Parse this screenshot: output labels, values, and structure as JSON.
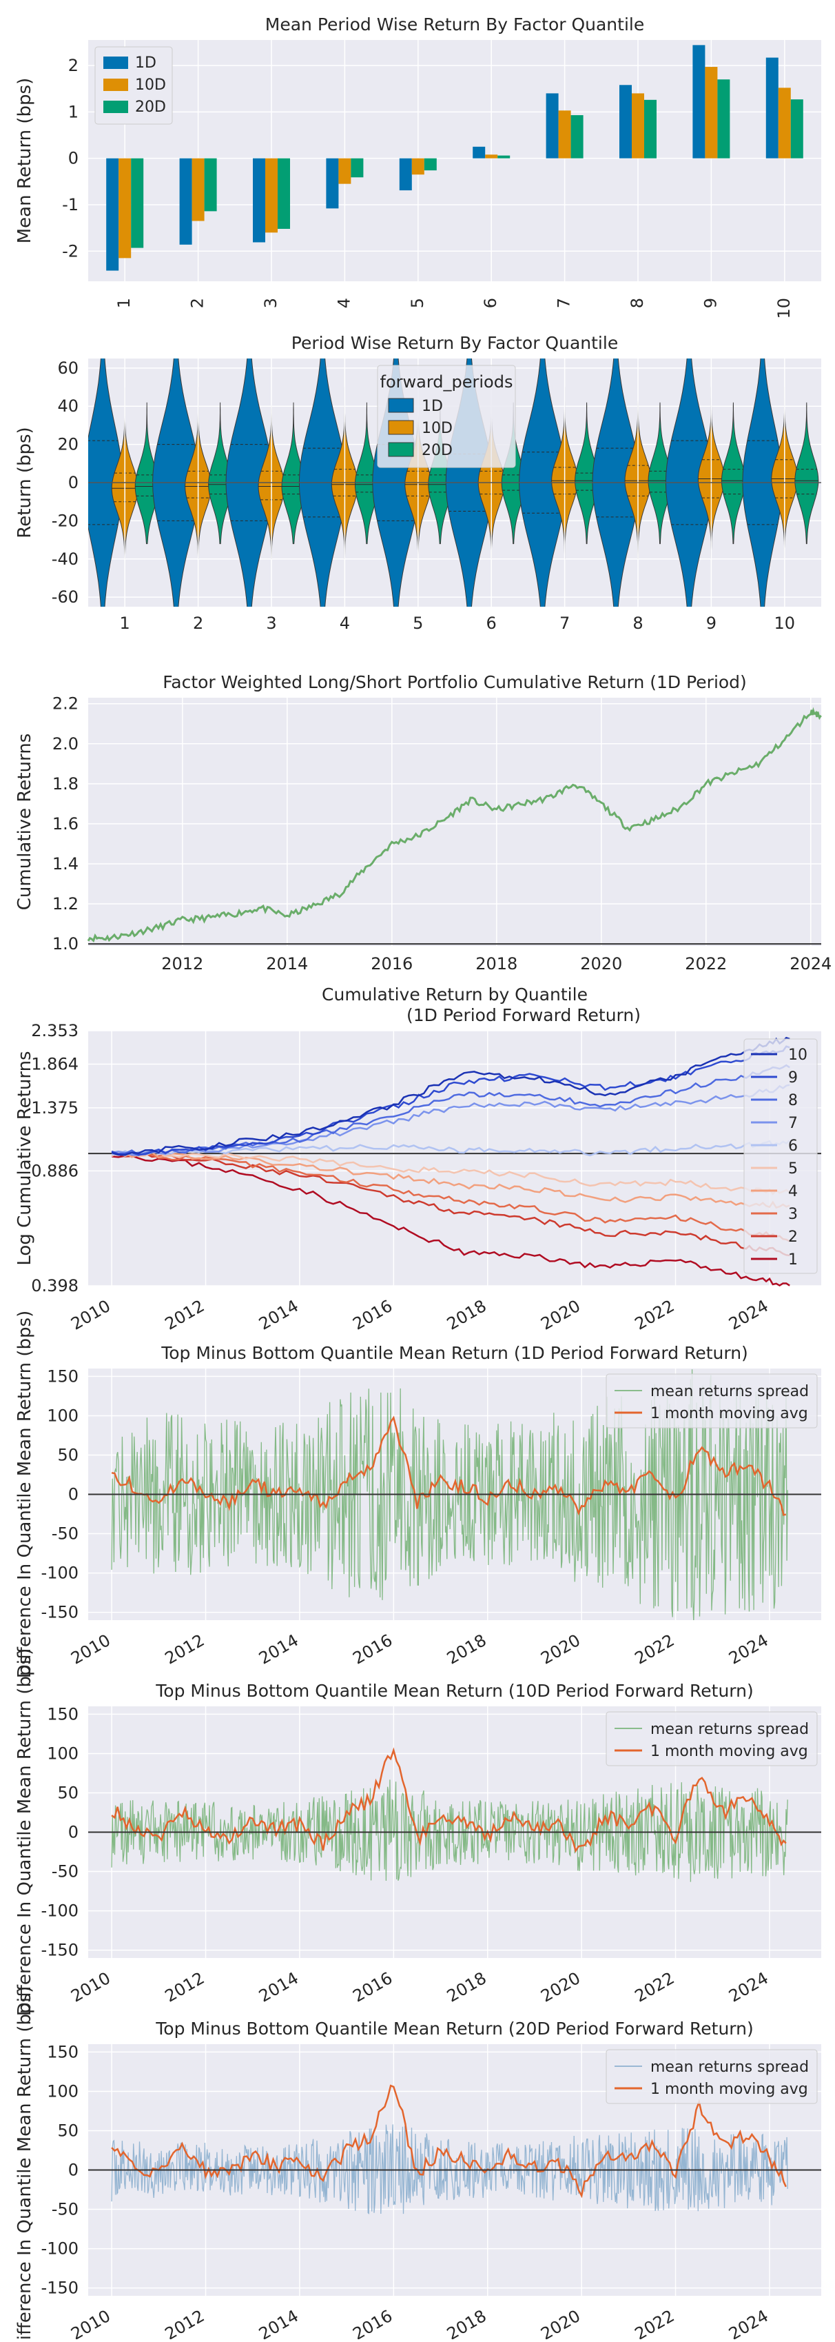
{
  "chart_data": [
    {
      "type": "bar",
      "title": "Mean Period Wise Return By Factor Quantile",
      "xlabel": "",
      "ylabel": "Mean Return (bps)",
      "ylim": [
        -2.65,
        2.55
      ],
      "yticks": [
        -2,
        -1,
        0,
        1,
        2
      ],
      "categories": [
        "1",
        "2",
        "3",
        "4",
        "5",
        "6",
        "7",
        "8",
        "9",
        "10"
      ],
      "legend_position": "top-left",
      "series": [
        {
          "name": "1D",
          "color": "#0173b2",
          "values": [
            -2.42,
            -1.86,
            -1.81,
            -1.08,
            -0.69,
            0.25,
            1.4,
            1.58,
            2.44,
            2.17
          ]
        },
        {
          "name": "10D",
          "color": "#de8f05",
          "values": [
            -2.15,
            -1.35,
            -1.6,
            -0.55,
            -0.35,
            0.08,
            1.03,
            1.4,
            1.97,
            1.52
          ]
        },
        {
          "name": "20D",
          "color": "#029e73",
          "values": [
            -1.93,
            -1.14,
            -1.52,
            -0.41,
            -0.26,
            0.06,
            0.93,
            1.26,
            1.7,
            1.27
          ]
        }
      ]
    },
    {
      "type": "violin",
      "title": "Period Wise Return By Factor Quantile",
      "xlabel": "",
      "ylabel": "Return (bps)",
      "ylim": [
        -65,
        65
      ],
      "yticks": [
        -60,
        -40,
        -20,
        0,
        20,
        40,
        60
      ],
      "categories": [
        "1",
        "2",
        "3",
        "4",
        "5",
        "6",
        "7",
        "8",
        "9",
        "10"
      ],
      "legend_title": "forward_periods",
      "legend_position": "top-center",
      "series": [
        {
          "name": "1D",
          "color": "#0173b2",
          "median": [
            0,
            0,
            0,
            0,
            0,
            0,
            0,
            0,
            0,
            0
          ],
          "q1": [
            -22,
            -20,
            -20,
            -18,
            -20,
            -15,
            -16,
            -18,
            -22,
            -22
          ],
          "q3": [
            22,
            20,
            20,
            18,
            20,
            15,
            16,
            18,
            22,
            22
          ]
        },
        {
          "name": "10D",
          "color": "#de8f05",
          "median": [
            -3,
            -2,
            -2,
            -1,
            -1,
            0,
            1,
            1,
            2,
            2
          ],
          "q1": [
            -10,
            -8,
            -9,
            -7,
            -7,
            -6,
            -6,
            -7,
            -8,
            -8
          ],
          "q3": [
            5,
            6,
            6,
            7,
            6,
            6,
            8,
            9,
            12,
            12
          ]
        },
        {
          "name": "20D",
          "color": "#029e73",
          "median": [
            -2,
            -1,
            -2,
            -1,
            -1,
            0,
            1,
            1,
            1,
            1
          ],
          "q1": [
            -7,
            -6,
            -6,
            -5,
            -5,
            -4,
            -4,
            -5,
            -6,
            -6
          ],
          "q3": [
            4,
            4,
            4,
            4,
            4,
            4,
            5,
            6,
            7,
            7
          ]
        }
      ]
    },
    {
      "type": "line",
      "title": "Factor Weighted Long/Short Portfolio Cumulative Return (1D Period)",
      "xlabel": "",
      "ylabel": "Cumulative Returns",
      "xlim": [
        2010.2,
        2024.2
      ],
      "ylim": [
        0.99,
        2.23
      ],
      "xticks": [
        "2012",
        "2014",
        "2016",
        "2018",
        "2020",
        "2022",
        "2024"
      ],
      "yticks": [
        "1.0",
        "1.2",
        "1.4",
        "1.6",
        "1.8",
        "2.0",
        "2.2"
      ],
      "series": [
        {
          "name": "",
          "color": "#6aad6a",
          "x": [
            2010.2,
            2010.6,
            2011.0,
            2011.5,
            2012.0,
            2012.5,
            2013.0,
            2013.5,
            2014.0,
            2014.5,
            2015.0,
            2015.5,
            2016.0,
            2016.5,
            2017.0,
            2017.5,
            2018.0,
            2018.5,
            2019.0,
            2019.5,
            2020.0,
            2020.5,
            2021.0,
            2021.5,
            2022.0,
            2022.5,
            2023.0,
            2023.5,
            2024.0,
            2024.2
          ],
          "y": [
            1.03,
            1.03,
            1.05,
            1.08,
            1.12,
            1.13,
            1.15,
            1.18,
            1.14,
            1.19,
            1.25,
            1.38,
            1.5,
            1.54,
            1.62,
            1.72,
            1.67,
            1.7,
            1.73,
            1.8,
            1.7,
            1.58,
            1.62,
            1.68,
            1.8,
            1.85,
            1.9,
            2.02,
            2.16,
            2.14
          ]
        }
      ]
    },
    {
      "type": "line",
      "title": "Cumulative Return by Quantile\n(1D Period Forward Return)",
      "xlabel": "",
      "ylabel": "Log Cumulative Returns",
      "xlim": [
        2009.5,
        2025.1
      ],
      "ylim": [
        0.398,
        2.353
      ],
      "yscale": "log",
      "xticks": [
        "2010",
        "2012",
        "2014",
        "2016",
        "2018",
        "2020",
        "2022",
        "2024"
      ],
      "yticks": [
        "0.398",
        "0.886",
        "1.375",
        "1.864",
        "2.353"
      ],
      "legend_position": "right",
      "series": [
        {
          "name": "10",
          "color": "#1a32b4",
          "x": [
            2010,
            2012,
            2014,
            2016,
            2017.5,
            2019,
            2020.5,
            2022,
            2023.5,
            2024.5
          ],
          "y": [
            1.0,
            1.05,
            1.15,
            1.4,
            1.75,
            1.7,
            1.5,
            1.72,
            2.05,
            2.25
          ]
        },
        {
          "name": "9",
          "color": "#2e4ad0",
          "x": [
            2010,
            2012,
            2014,
            2016,
            2017.5,
            2019,
            2020.5,
            2022,
            2023.5,
            2024.5
          ],
          "y": [
            1.0,
            1.04,
            1.12,
            1.38,
            1.65,
            1.72,
            1.58,
            1.7,
            1.95,
            2.1
          ]
        },
        {
          "name": "8",
          "color": "#4e6ae0",
          "x": [
            2010,
            2012,
            2014,
            2016,
            2017.5,
            2019,
            2020.5,
            2022,
            2023.5,
            2024.5
          ],
          "y": [
            1.0,
            1.03,
            1.1,
            1.3,
            1.52,
            1.5,
            1.4,
            1.55,
            1.72,
            1.85
          ]
        },
        {
          "name": "7",
          "color": "#7b93ec",
          "x": [
            2010,
            2012,
            2014,
            2016,
            2017.5,
            2019,
            2020.5,
            2022,
            2023.5,
            2024.5
          ],
          "y": [
            1.0,
            1.02,
            1.08,
            1.25,
            1.4,
            1.42,
            1.35,
            1.42,
            1.5,
            1.6
          ]
        },
        {
          "name": "6",
          "color": "#b0c2f2",
          "x": [
            2010,
            2012,
            2014,
            2016,
            2017.5,
            2019,
            2020.5,
            2022,
            2023.5,
            2024.5
          ],
          "y": [
            1.0,
            1.01,
            1.03,
            1.05,
            1.02,
            1.03,
            1.0,
            1.04,
            1.06,
            1.08
          ]
        },
        {
          "name": "5",
          "color": "#f4c4b0",
          "x": [
            2010,
            2012,
            2014,
            2016,
            2017.5,
            2019,
            2020.5,
            2022,
            2023.5,
            2024.5
          ],
          "y": [
            1.0,
            0.99,
            0.96,
            0.9,
            0.88,
            0.86,
            0.8,
            0.82,
            0.78,
            0.76
          ]
        },
        {
          "name": "4",
          "color": "#f2a07e",
          "x": [
            2010,
            2012,
            2014,
            2016,
            2017.5,
            2019,
            2020.5,
            2022,
            2023.5,
            2024.5
          ],
          "y": [
            1.0,
            0.98,
            0.92,
            0.85,
            0.8,
            0.78,
            0.72,
            0.74,
            0.7,
            0.7
          ]
        },
        {
          "name": "3",
          "color": "#e36a4a",
          "x": [
            2010,
            2012,
            2014,
            2016,
            2017.5,
            2019,
            2020.5,
            2022,
            2023.5,
            2024.5
          ],
          "y": [
            1.0,
            0.96,
            0.88,
            0.78,
            0.72,
            0.68,
            0.62,
            0.64,
            0.58,
            0.55
          ]
        },
        {
          "name": "2",
          "color": "#cd3a2e",
          "x": [
            2010,
            2012,
            2014,
            2016,
            2017.5,
            2019,
            2020.5,
            2022,
            2023.5,
            2024.5
          ],
          "y": [
            1.0,
            0.95,
            0.86,
            0.74,
            0.66,
            0.63,
            0.57,
            0.58,
            0.52,
            0.5
          ]
        },
        {
          "name": "1",
          "color": "#b00c22",
          "x": [
            2010,
            2012,
            2014,
            2016,
            2017.5,
            2019,
            2020.5,
            2022,
            2023.5,
            2024.5
          ],
          "y": [
            1.0,
            0.92,
            0.78,
            0.6,
            0.5,
            0.49,
            0.45,
            0.48,
            0.42,
            0.4
          ]
        }
      ]
    },
    {
      "type": "line",
      "title": "Top Minus Bottom Quantile Mean Return (1D Period Forward Return)",
      "xlabel": "",
      "ylabel": "Difference In Quantile Mean Return (bps)",
      "xlim": [
        2009.5,
        2025.1
      ],
      "ylim": [
        -160,
        160
      ],
      "xticks": [
        "2010",
        "2012",
        "2014",
        "2016",
        "2018",
        "2020",
        "2022",
        "2024"
      ],
      "yticks": [
        -150,
        -100,
        -50,
        0,
        50,
        100,
        150
      ],
      "legend_position": "top-right",
      "series": [
        {
          "name": "mean returns spread",
          "color": "#6aad6a",
          "band": true,
          "x": [
            2010,
            2011,
            2012,
            2013,
            2014,
            2015,
            2016,
            2017,
            2018,
            2019,
            2020,
            2021,
            2022,
            2023,
            2024.4
          ],
          "y": [
            80,
            90,
            85,
            75,
            80,
            110,
            120,
            80,
            75,
            80,
            100,
            110,
            140,
            130,
            120
          ]
        },
        {
          "name": "1 month moving avg",
          "color": "#e3652d",
          "x": [
            2010,
            2010.5,
            2011,
            2011.5,
            2012,
            2012.5,
            2013,
            2013.5,
            2014,
            2014.5,
            2015,
            2015.5,
            2016,
            2016.5,
            2017,
            2017.5,
            2018,
            2018.5,
            2019,
            2019.5,
            2020,
            2020.5,
            2021,
            2021.5,
            2022,
            2022.5,
            2023,
            2023.5,
            2024,
            2024.4
          ],
          "y": [
            25,
            10,
            -5,
            20,
            5,
            -10,
            15,
            0,
            10,
            -15,
            20,
            35,
            95,
            -10,
            20,
            10,
            -5,
            15,
            0,
            10,
            -20,
            15,
            5,
            30,
            -10,
            60,
            25,
            40,
            10,
            -30
          ]
        }
      ]
    },
    {
      "type": "line",
      "title": "Top Minus Bottom Quantile Mean Return (10D Period Forward Return)",
      "xlabel": "",
      "ylabel": "Difference In Quantile Mean Return (bps)",
      "xlim": [
        2009.5,
        2025.1
      ],
      "ylim": [
        -160,
        160
      ],
      "xticks": [
        "2010",
        "2012",
        "2014",
        "2016",
        "2018",
        "2020",
        "2022",
        "2024"
      ],
      "yticks": [
        -150,
        -100,
        -50,
        0,
        50,
        100,
        150
      ],
      "legend_position": "top-right",
      "series": [
        {
          "name": "mean returns spread",
          "color": "#6aad6a",
          "band": true,
          "x": [
            2010,
            2011,
            2012,
            2013,
            2014,
            2015,
            2016,
            2017,
            2018,
            2019,
            2020,
            2021,
            2022,
            2023,
            2024.4
          ],
          "y": [
            45,
            40,
            40,
            35,
            40,
            55,
            70,
            45,
            40,
            40,
            50,
            55,
            65,
            60,
            55
          ]
        },
        {
          "name": "1 month moving avg",
          "color": "#e3652d",
          "x": [
            2010,
            2010.5,
            2011,
            2011.5,
            2012,
            2012.5,
            2013,
            2013.5,
            2014,
            2014.5,
            2015,
            2015.5,
            2016,
            2016.5,
            2017,
            2017.5,
            2018,
            2018.5,
            2019,
            2019.5,
            2020,
            2020.5,
            2021,
            2021.5,
            2022,
            2022.5,
            2023,
            2023.5,
            2024,
            2024.4
          ],
          "y": [
            30,
            5,
            -5,
            25,
            0,
            -10,
            15,
            5,
            10,
            -15,
            25,
            40,
            105,
            -10,
            25,
            15,
            -5,
            20,
            5,
            10,
            -25,
            20,
            10,
            30,
            -5,
            75,
            25,
            45,
            15,
            -25
          ]
        }
      ]
    },
    {
      "type": "line",
      "title": "Top Minus Bottom Quantile Mean Return (20D Period Forward Return)",
      "xlabel": "",
      "ylabel": "Difference In Quantile Mean Return (bps)",
      "xlim": [
        2009.5,
        2025.1
      ],
      "ylim": [
        -160,
        160
      ],
      "xticks": [
        "2010",
        "2012",
        "2014",
        "2016",
        "2018",
        "2020",
        "2022",
        "2024"
      ],
      "yticks": [
        -150,
        -100,
        -50,
        0,
        50,
        100,
        150
      ],
      "legend_position": "top-right",
      "series": [
        {
          "name": "mean returns spread",
          "color": "#7fa8c9",
          "band": true,
          "x": [
            2010,
            2011,
            2012,
            2013,
            2014,
            2015,
            2016,
            2017,
            2018,
            2019,
            2020,
            2021,
            2022,
            2023,
            2024.4
          ],
          "y": [
            40,
            35,
            35,
            30,
            35,
            50,
            65,
            40,
            35,
            35,
            45,
            50,
            55,
            50,
            45
          ]
        },
        {
          "name": "1 month moving avg",
          "color": "#e3652d",
          "x": [
            2010,
            2010.5,
            2011,
            2011.5,
            2012,
            2012.5,
            2013,
            2013.5,
            2014,
            2014.5,
            2015,
            2015.5,
            2016,
            2016.5,
            2017,
            2017.5,
            2018,
            2018.5,
            2019,
            2019.5,
            2020,
            2020.5,
            2021,
            2021.5,
            2022,
            2022.5,
            2023,
            2023.5,
            2024,
            2024.4
          ],
          "y": [
            30,
            5,
            -5,
            25,
            0,
            -5,
            20,
            5,
            10,
            -10,
            25,
            40,
            110,
            -5,
            25,
            15,
            0,
            20,
            5,
            10,
            -25,
            20,
            10,
            30,
            -5,
            80,
            30,
            45,
            15,
            -20
          ]
        }
      ]
    }
  ]
}
